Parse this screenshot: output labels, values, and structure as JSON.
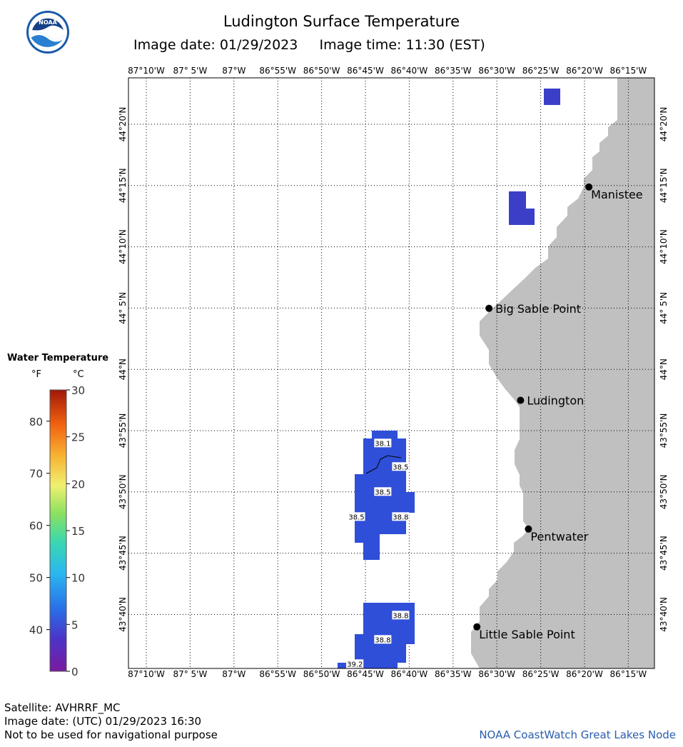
{
  "header": {
    "title": "Ludington Surface Temperature",
    "subtitle": "Image date: 01/29/2023     Image time: 11:30 (EST)",
    "logo_text": "NOAA"
  },
  "map": {
    "lon_ticks": [
      "87°10'W",
      "87° 5'W",
      "87°W",
      "86°55'W",
      "86°50'W",
      "86°45'W",
      "86°40'W",
      "86°35'W",
      "86°30'W",
      "86°25'W",
      "86°20'W",
      "86°15'W"
    ],
    "lat_ticks": [
      "44°20'N",
      "44°15'N",
      "44°10'N",
      "44° 5'N",
      "44°N",
      "43°55'N",
      "43°50'N",
      "43°45'N",
      "43°40'N"
    ],
    "places": [
      {
        "name": "Manistee",
        "lon": -86.325,
        "lat": 44.248
      },
      {
        "name": "Big Sable Point",
        "lon": -86.515,
        "lat": 44.083
      },
      {
        "name": "Ludington",
        "lon": -86.455,
        "lat": 43.958
      },
      {
        "name": "Pentwater",
        "lon": -86.44,
        "lat": 43.783
      },
      {
        "name": "Little Sable Point",
        "lon": -86.538,
        "lat": 43.65
      }
    ],
    "temperature_labels": [
      {
        "text": "38.1",
        "lon": -86.717,
        "lat": 43.9
      },
      {
        "text": "38.5",
        "lon": -86.683,
        "lat": 43.868
      },
      {
        "text": "38.5",
        "lon": -86.717,
        "lat": 43.834
      },
      {
        "text": "38.5",
        "lon": -86.767,
        "lat": 43.8
      },
      {
        "text": "38.8",
        "lon": -86.683,
        "lat": 43.8
      },
      {
        "text": "38.8",
        "lon": -86.683,
        "lat": 43.666
      },
      {
        "text": "38.8",
        "lon": -86.717,
        "lat": 43.633
      },
      {
        "text": "39.2",
        "lon": -86.77,
        "lat": 43.6
      }
    ],
    "colors": {
      "land": "#c0c0c0",
      "water_cold": "#3a44c8",
      "water_sst": "#2f4ed8"
    }
  },
  "legend": {
    "title": "Water Temperature",
    "unit_f": "°F",
    "unit_c": "°C",
    "f_ticks": [
      "80",
      "70",
      "60",
      "50",
      "40"
    ],
    "c_ticks": [
      "30",
      "25",
      "20",
      "15",
      "10",
      "5",
      "0"
    ]
  },
  "footer": {
    "satellite": "Satellite: AVHRRF_MC",
    "utc_date": "Image date: (UTC) 01/29/2023  16:30",
    "disclaimer": "Not to be used for navigational purpose",
    "node": "NOAA CoastWatch Great Lakes Node"
  }
}
